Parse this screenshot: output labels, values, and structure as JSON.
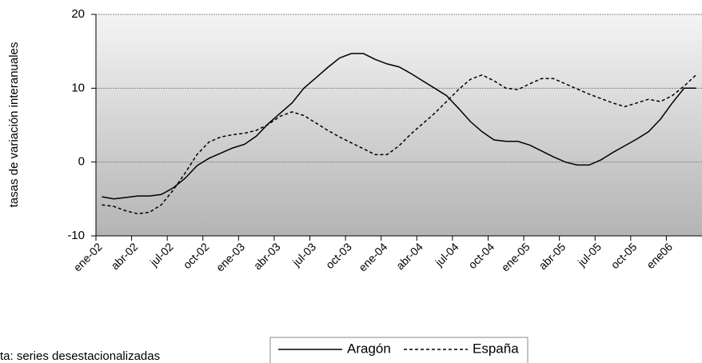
{
  "chart_data": {
    "type": "line",
    "ylabel": "tasas de variación interanuales",
    "note": "ta: series desestacionalizadas",
    "categories": [
      "ene-02",
      null,
      null,
      "abr-02",
      null,
      null,
      "jul-02",
      null,
      null,
      "oct-02",
      null,
      null,
      "ene-03",
      null,
      null,
      "abr-03",
      null,
      null,
      "jul-03",
      null,
      null,
      "oct-03",
      null,
      null,
      "ene-04",
      null,
      null,
      "abr-04",
      null,
      null,
      "jul-04",
      null,
      null,
      "oct-04",
      null,
      null,
      "ene-05",
      null,
      null,
      "abr-05",
      null,
      null,
      "jul-05",
      null,
      null,
      "oct-05",
      null,
      null,
      "ene06",
      null,
      null
    ],
    "series": [
      {
        "name": "Aragón",
        "color": "#000000",
        "dash": "solid",
        "values": [
          -4.7,
          -5.0,
          -4.8,
          -4.6,
          -4.6,
          -4.4,
          -3.5,
          -2.2,
          -0.5,
          0.5,
          1.2,
          1.9,
          2.4,
          3.5,
          5.2,
          6.6,
          8.0,
          10.0,
          11.4,
          12.8,
          14.1,
          14.7,
          14.7,
          13.9,
          13.3,
          12.9,
          12.0,
          11.0,
          10.0,
          9.0,
          7.3,
          5.5,
          4.1,
          3.0,
          2.8,
          2.8,
          2.3,
          1.5,
          0.7,
          0.0,
          -0.4,
          -0.4,
          0.3,
          1.3,
          2.2,
          3.1,
          4.1,
          5.8,
          8.0,
          10.0,
          10.0
        ]
      },
      {
        "name": "España",
        "color": "#000000",
        "dash": "dotted",
        "values": [
          -5.8,
          -6.0,
          -6.6,
          -7.0,
          -6.8,
          -5.8,
          -3.8,
          -1.5,
          1.0,
          2.7,
          3.4,
          3.7,
          3.9,
          4.3,
          5.1,
          6.2,
          6.8,
          6.3,
          5.3,
          4.3,
          3.4,
          2.6,
          1.8,
          1.0,
          1.0,
          2.2,
          3.8,
          5.2,
          6.6,
          8.2,
          9.8,
          11.2,
          11.8,
          11.0,
          10.0,
          9.8,
          10.6,
          11.3,
          11.3,
          10.6,
          9.9,
          9.2,
          8.6,
          8.0,
          7.5,
          8.0,
          8.5,
          8.2,
          9.0,
          10.3,
          11.8
        ]
      }
    ],
    "ylim": [
      -10,
      20
    ],
    "yticks": [
      -10,
      0,
      10,
      20
    ],
    "grid": true,
    "legend": "bottom"
  }
}
